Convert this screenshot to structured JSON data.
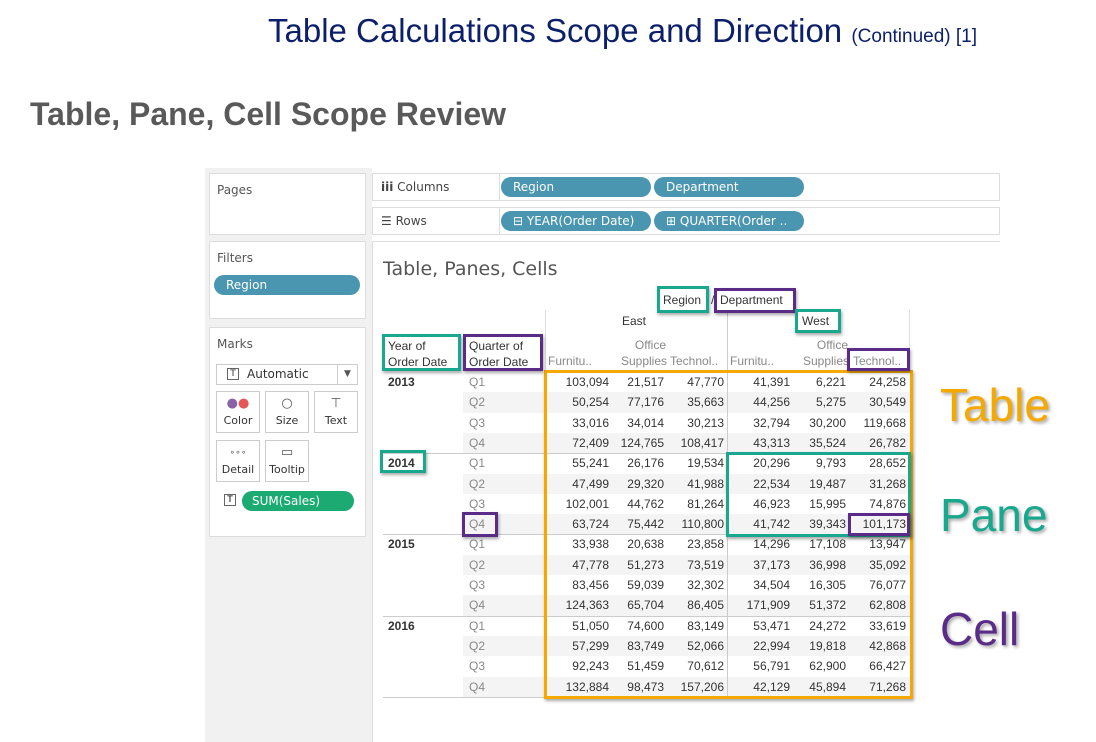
{
  "slide": {
    "title": "Table Calculations Scope and Direction",
    "title_suffix": "(Continued) [1]",
    "subtitle": "Table, Pane, Cell Scope Review"
  },
  "side": {
    "pages": "Pages",
    "filters": "Filters",
    "filter_pill": "Region",
    "marks": "Marks",
    "mark_type": "Automatic",
    "buttons": [
      {
        "label": "Color",
        "icon": "color-icon"
      },
      {
        "label": "Size",
        "icon": "size-icon"
      },
      {
        "label": "Text",
        "icon": "text-icon"
      },
      {
        "label": "Detail",
        "icon": "detail-icon"
      },
      {
        "label": "Tooltip",
        "icon": "tooltip-icon"
      }
    ],
    "measure_pill": "SUM(Sales)"
  },
  "shelves": {
    "columns_label": "Columns",
    "rows_label": "Rows",
    "columns": [
      "Region",
      "Department"
    ],
    "rows": [
      "YEAR(Order Date)",
      "QUARTER(Order .."
    ]
  },
  "viz": {
    "title": "Table, Panes, Cells",
    "header_region": "Region",
    "header_sep": "/",
    "header_department": "Department",
    "regions": [
      "East",
      "West"
    ],
    "departments": [
      [
        "",
        "Furnitu.."
      ],
      [
        "Office",
        "Supplies"
      ],
      [
        "",
        "Technol.."
      ],
      [
        "",
        "Furnitu.."
      ],
      [
        "Office",
        "Supplies"
      ],
      [
        "",
        "Technol.."
      ]
    ],
    "row_header_year": [
      "Year of",
      "Order Date"
    ],
    "row_header_quarter": [
      "Quarter of",
      "Order Date"
    ],
    "years": [
      "2013",
      "2014",
      "2015",
      "2016"
    ],
    "quarters": [
      "Q1",
      "Q2",
      "Q3",
      "Q4"
    ],
    "values": [
      [
        "103,094",
        "21,517",
        "47,770",
        "41,391",
        "6,221",
        "24,258"
      ],
      [
        "50,254",
        "77,176",
        "35,663",
        "44,256",
        "5,275",
        "30,549"
      ],
      [
        "33,016",
        "34,014",
        "30,213",
        "32,794",
        "30,200",
        "119,668"
      ],
      [
        "72,409",
        "124,765",
        "108,417",
        "43,313",
        "35,524",
        "26,782"
      ],
      [
        "55,241",
        "26,176",
        "19,534",
        "20,296",
        "9,793",
        "28,652"
      ],
      [
        "47,499",
        "29,320",
        "41,988",
        "22,534",
        "19,487",
        "31,268"
      ],
      [
        "102,001",
        "44,762",
        "81,264",
        "46,923",
        "15,995",
        "74,876"
      ],
      [
        "63,724",
        "75,442",
        "110,800",
        "41,742",
        "39,343",
        "101,173"
      ],
      [
        "33,938",
        "20,638",
        "23,858",
        "14,296",
        "17,108",
        "13,947"
      ],
      [
        "47,778",
        "51,273",
        "73,519",
        "37,173",
        "36,998",
        "35,092"
      ],
      [
        "83,456",
        "59,039",
        "32,302",
        "34,504",
        "16,305",
        "76,077"
      ],
      [
        "124,363",
        "65,704",
        "86,405",
        "171,909",
        "51,372",
        "62,808"
      ],
      [
        "51,050",
        "74,600",
        "83,149",
        "53,471",
        "24,272",
        "33,619"
      ],
      [
        "57,299",
        "83,749",
        "52,066",
        "22,994",
        "19,818",
        "42,868"
      ],
      [
        "92,243",
        "51,459",
        "70,612",
        "56,791",
        "62,900",
        "66,427"
      ],
      [
        "132,884",
        "98,473",
        "157,206",
        "42,129",
        "45,894",
        "71,268"
      ]
    ]
  },
  "labels": {
    "table": "Table",
    "pane": "Pane",
    "cell": "Cell"
  },
  "colors": {
    "table": "#f5a800",
    "pane": "#19a88d",
    "cell": "#5a2b87",
    "title": "#0c1f6b",
    "pill": "#4a95b0",
    "measure_pill": "#1aaa72"
  }
}
